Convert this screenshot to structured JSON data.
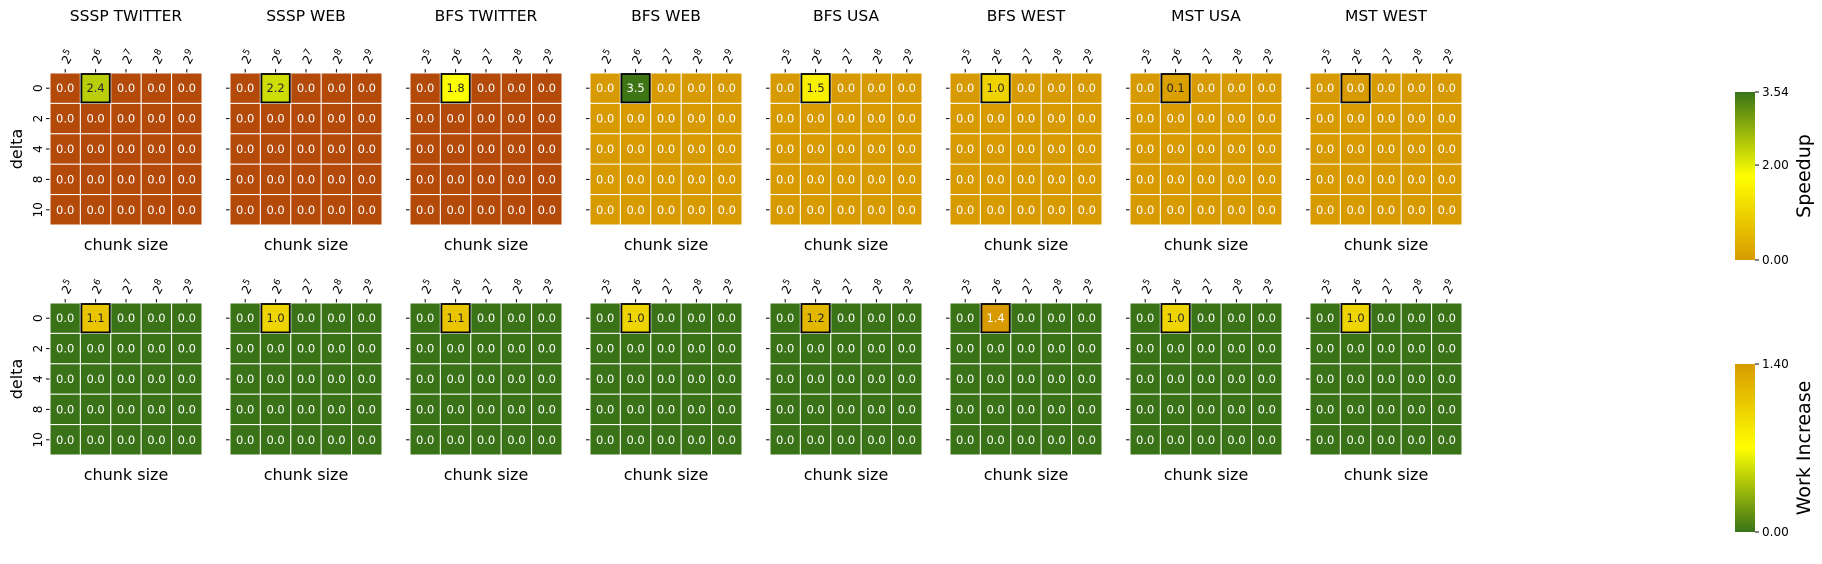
{
  "chart_data": {
    "type": "heatmap",
    "x_tick_labels": [
      "2^5",
      "2^6",
      "2^7",
      "2^8",
      "2^9"
    ],
    "y_tick_labels": [
      "0",
      "2",
      "4",
      "8",
      "10"
    ],
    "xlabel": "chunk size",
    "ylabel": "delta",
    "value_format": "1 decimal",
    "highlight_cell": {
      "row": 0,
      "col": 1
    },
    "rows": [
      {
        "metric": "Speedup",
        "colorbar_label": "Speedup",
        "colorbar_ticks": [
          "0.00",
          "2.00",
          "3.54"
        ],
        "vmin": 0,
        "vmax": 3.54,
        "colormap": [
          "#d79a00",
          "#ffff00",
          "#3a7317"
        ],
        "below_min_color": "#b34a0a",
        "panels": [
          {
            "title": "SSSP TWITTER",
            "values": [
              [
                0.0,
                2.4,
                0.0,
                0.0,
                0.0
              ],
              [
                0.0,
                0.0,
                0.0,
                0.0,
                0.0
              ],
              [
                0.0,
                0.0,
                0.0,
                0.0,
                0.0
              ],
              [
                0.0,
                0.0,
                0.0,
                0.0,
                0.0
              ],
              [
                0.0,
                0.0,
                0.0,
                0.0,
                0.0
              ]
            ],
            "background": "below_min"
          },
          {
            "title": "SSSP WEB",
            "values": [
              [
                0.0,
                2.2,
                0.0,
                0.0,
                0.0
              ],
              [
                0.0,
                0.0,
                0.0,
                0.0,
                0.0
              ],
              [
                0.0,
                0.0,
                0.0,
                0.0,
                0.0
              ],
              [
                0.0,
                0.0,
                0.0,
                0.0,
                0.0
              ],
              [
                0.0,
                0.0,
                0.0,
                0.0,
                0.0
              ]
            ],
            "background": "below_min"
          },
          {
            "title": "BFS TWITTER",
            "values": [
              [
                0.0,
                1.8,
                0.0,
                0.0,
                0.0
              ],
              [
                0.0,
                0.0,
                0.0,
                0.0,
                0.0
              ],
              [
                0.0,
                0.0,
                0.0,
                0.0,
                0.0
              ],
              [
                0.0,
                0.0,
                0.0,
                0.0,
                0.0
              ],
              [
                0.0,
                0.0,
                0.0,
                0.0,
                0.0
              ]
            ],
            "background": "below_min"
          },
          {
            "title": "BFS WEB",
            "values": [
              [
                0.0,
                3.5,
                0.0,
                0.0,
                0.0
              ],
              [
                0.0,
                0.0,
                0.0,
                0.0,
                0.0
              ],
              [
                0.0,
                0.0,
                0.0,
                0.0,
                0.0
              ],
              [
                0.0,
                0.0,
                0.0,
                0.0,
                0.0
              ],
              [
                0.0,
                0.0,
                0.0,
                0.0,
                0.0
              ]
            ],
            "background": "min"
          },
          {
            "title": "BFS USA",
            "values": [
              [
                0.0,
                1.5,
                0.0,
                0.0,
                0.0
              ],
              [
                0.0,
                0.0,
                0.0,
                0.0,
                0.0
              ],
              [
                0.0,
                0.0,
                0.0,
                0.0,
                0.0
              ],
              [
                0.0,
                0.0,
                0.0,
                0.0,
                0.0
              ],
              [
                0.0,
                0.0,
                0.0,
                0.0,
                0.0
              ]
            ],
            "background": "min"
          },
          {
            "title": "BFS WEST",
            "values": [
              [
                0.0,
                1.0,
                0.0,
                0.0,
                0.0
              ],
              [
                0.0,
                0.0,
                0.0,
                0.0,
                0.0
              ],
              [
                0.0,
                0.0,
                0.0,
                0.0,
                0.0
              ],
              [
                0.0,
                0.0,
                0.0,
                0.0,
                0.0
              ],
              [
                0.0,
                0.0,
                0.0,
                0.0,
                0.0
              ]
            ],
            "background": "min"
          },
          {
            "title": "MST USA",
            "values": [
              [
                0.0,
                0.1,
                0.0,
                0.0,
                0.0
              ],
              [
                0.0,
                0.0,
                0.0,
                0.0,
                0.0
              ],
              [
                0.0,
                0.0,
                0.0,
                0.0,
                0.0
              ],
              [
                0.0,
                0.0,
                0.0,
                0.0,
                0.0
              ],
              [
                0.0,
                0.0,
                0.0,
                0.0,
                0.0
              ]
            ],
            "background": "min"
          },
          {
            "title": "MST WEST",
            "values": [
              [
                0.0,
                0.0,
                0.0,
                0.0,
                0.0
              ],
              [
                0.0,
                0.0,
                0.0,
                0.0,
                0.0
              ],
              [
                0.0,
                0.0,
                0.0,
                0.0,
                0.0
              ],
              [
                0.0,
                0.0,
                0.0,
                0.0,
                0.0
              ],
              [
                0.0,
                0.0,
                0.0,
                0.0,
                0.0
              ]
            ],
            "background": "min"
          }
        ]
      },
      {
        "metric": "Work Increase",
        "colorbar_label": "Work Increase",
        "colorbar_ticks": [
          "0.00",
          "1.40"
        ],
        "vmin": 0,
        "vmax": 1.4,
        "colormap": [
          "#3a7317",
          "#ffff00",
          "#d79a00"
        ],
        "panels": [
          {
            "title": "",
            "values": [
              [
                0.0,
                1.1,
                0.0,
                0.0,
                0.0
              ],
              [
                0.0,
                0.0,
                0.0,
                0.0,
                0.0
              ],
              [
                0.0,
                0.0,
                0.0,
                0.0,
                0.0
              ],
              [
                0.0,
                0.0,
                0.0,
                0.0,
                0.0
              ],
              [
                0.0,
                0.0,
                0.0,
                0.0,
                0.0
              ]
            ],
            "background": "min"
          },
          {
            "title": "",
            "values": [
              [
                0.0,
                1.0,
                0.0,
                0.0,
                0.0
              ],
              [
                0.0,
                0.0,
                0.0,
                0.0,
                0.0
              ],
              [
                0.0,
                0.0,
                0.0,
                0.0,
                0.0
              ],
              [
                0.0,
                0.0,
                0.0,
                0.0,
                0.0
              ],
              [
                0.0,
                0.0,
                0.0,
                0.0,
                0.0
              ]
            ],
            "background": "min"
          },
          {
            "title": "",
            "values": [
              [
                0.0,
                1.1,
                0.0,
                0.0,
                0.0
              ],
              [
                0.0,
                0.0,
                0.0,
                0.0,
                0.0
              ],
              [
                0.0,
                0.0,
                0.0,
                0.0,
                0.0
              ],
              [
                0.0,
                0.0,
                0.0,
                0.0,
                0.0
              ],
              [
                0.0,
                0.0,
                0.0,
                0.0,
                0.0
              ]
            ],
            "background": "min"
          },
          {
            "title": "",
            "values": [
              [
                0.0,
                1.0,
                0.0,
                0.0,
                0.0
              ],
              [
                0.0,
                0.0,
                0.0,
                0.0,
                0.0
              ],
              [
                0.0,
                0.0,
                0.0,
                0.0,
                0.0
              ],
              [
                0.0,
                0.0,
                0.0,
                0.0,
                0.0
              ],
              [
                0.0,
                0.0,
                0.0,
                0.0,
                0.0
              ]
            ],
            "background": "min"
          },
          {
            "title": "",
            "values": [
              [
                0.0,
                1.2,
                0.0,
                0.0,
                0.0
              ],
              [
                0.0,
                0.0,
                0.0,
                0.0,
                0.0
              ],
              [
                0.0,
                0.0,
                0.0,
                0.0,
                0.0
              ],
              [
                0.0,
                0.0,
                0.0,
                0.0,
                0.0
              ],
              [
                0.0,
                0.0,
                0.0,
                0.0,
                0.0
              ]
            ],
            "background": "min"
          },
          {
            "title": "",
            "values": [
              [
                0.0,
                1.4,
                0.0,
                0.0,
                0.0
              ],
              [
                0.0,
                0.0,
                0.0,
                0.0,
                0.0
              ],
              [
                0.0,
                0.0,
                0.0,
                0.0,
                0.0
              ],
              [
                0.0,
                0.0,
                0.0,
                0.0,
                0.0
              ],
              [
                0.0,
                0.0,
                0.0,
                0.0,
                0.0
              ]
            ],
            "background": "min"
          },
          {
            "title": "",
            "values": [
              [
                0.0,
                1.0,
                0.0,
                0.0,
                0.0
              ],
              [
                0.0,
                0.0,
                0.0,
                0.0,
                0.0
              ],
              [
                0.0,
                0.0,
                0.0,
                0.0,
                0.0
              ],
              [
                0.0,
                0.0,
                0.0,
                0.0,
                0.0
              ],
              [
                0.0,
                0.0,
                0.0,
                0.0,
                0.0
              ]
            ],
            "background": "min"
          },
          {
            "title": "",
            "values": [
              [
                0.0,
                1.0,
                0.0,
                0.0,
                0.0
              ],
              [
                0.0,
                0.0,
                0.0,
                0.0,
                0.0
              ],
              [
                0.0,
                0.0,
                0.0,
                0.0,
                0.0
              ],
              [
                0.0,
                0.0,
                0.0,
                0.0,
                0.0
              ],
              [
                0.0,
                0.0,
                0.0,
                0.0,
                0.0
              ]
            ],
            "background": "min"
          }
        ]
      }
    ]
  }
}
